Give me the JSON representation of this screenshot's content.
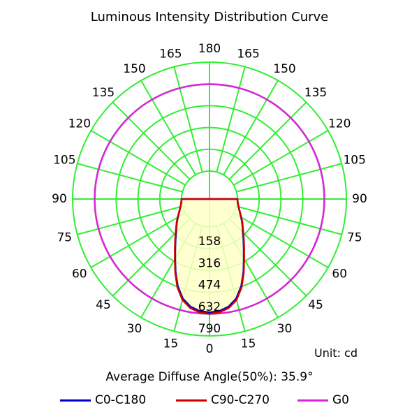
{
  "title": "Luminous Intensity Distribution Curve",
  "unit_label": "Unit: cd",
  "average_angle_label": "Average Diffuse Angle(50%): 35.9°",
  "colors": {
    "grid": "#33ee33",
    "c0": "#0000cc",
    "c90": "#cc0000",
    "g0": "#dd22dd",
    "fill": "#ffffc8"
  },
  "chart_data": {
    "type": "polar",
    "title": "Luminous Intensity Distribution Curve",
    "unit": "cd",
    "angle_tick_labels": [
      "0",
      "15",
      "30",
      "45",
      "60",
      "75",
      "90",
      "105",
      "120",
      "135",
      "150",
      "165",
      "180",
      "165",
      "150",
      "135",
      "120",
      "105",
      "90",
      "75",
      "60",
      "45",
      "30",
      "15"
    ],
    "radial_ticks": [
      158,
      316,
      474,
      632,
      790
    ],
    "rmax": 790,
    "legend": [
      "C0-C180",
      "C90-C270",
      "G0"
    ],
    "series": [
      {
        "name": "C0-C180",
        "angles": [
          0,
          5,
          10,
          15,
          20,
          25,
          30,
          35,
          40,
          45,
          50,
          55,
          60,
          65,
          70,
          75,
          80,
          85,
          90
        ],
        "values": [
          620,
          613,
          590,
          545,
          470,
          380,
          295,
          230,
          180,
          140,
          110,
          85,
          62,
          42,
          27,
          15,
          7,
          2,
          0
        ]
      },
      {
        "name": "C90-C270",
        "angles": [
          0,
          5,
          10,
          15,
          20,
          25,
          30,
          35,
          40,
          45,
          50,
          55,
          60,
          65,
          70,
          75,
          80,
          85,
          90
        ],
        "values": [
          630,
          622,
          600,
          555,
          478,
          386,
          300,
          235,
          185,
          145,
          113,
          88,
          64,
          44,
          28,
          16,
          8,
          3,
          0
        ]
      },
      {
        "name": "G0",
        "type": "circle",
        "value": 630
      }
    ]
  }
}
